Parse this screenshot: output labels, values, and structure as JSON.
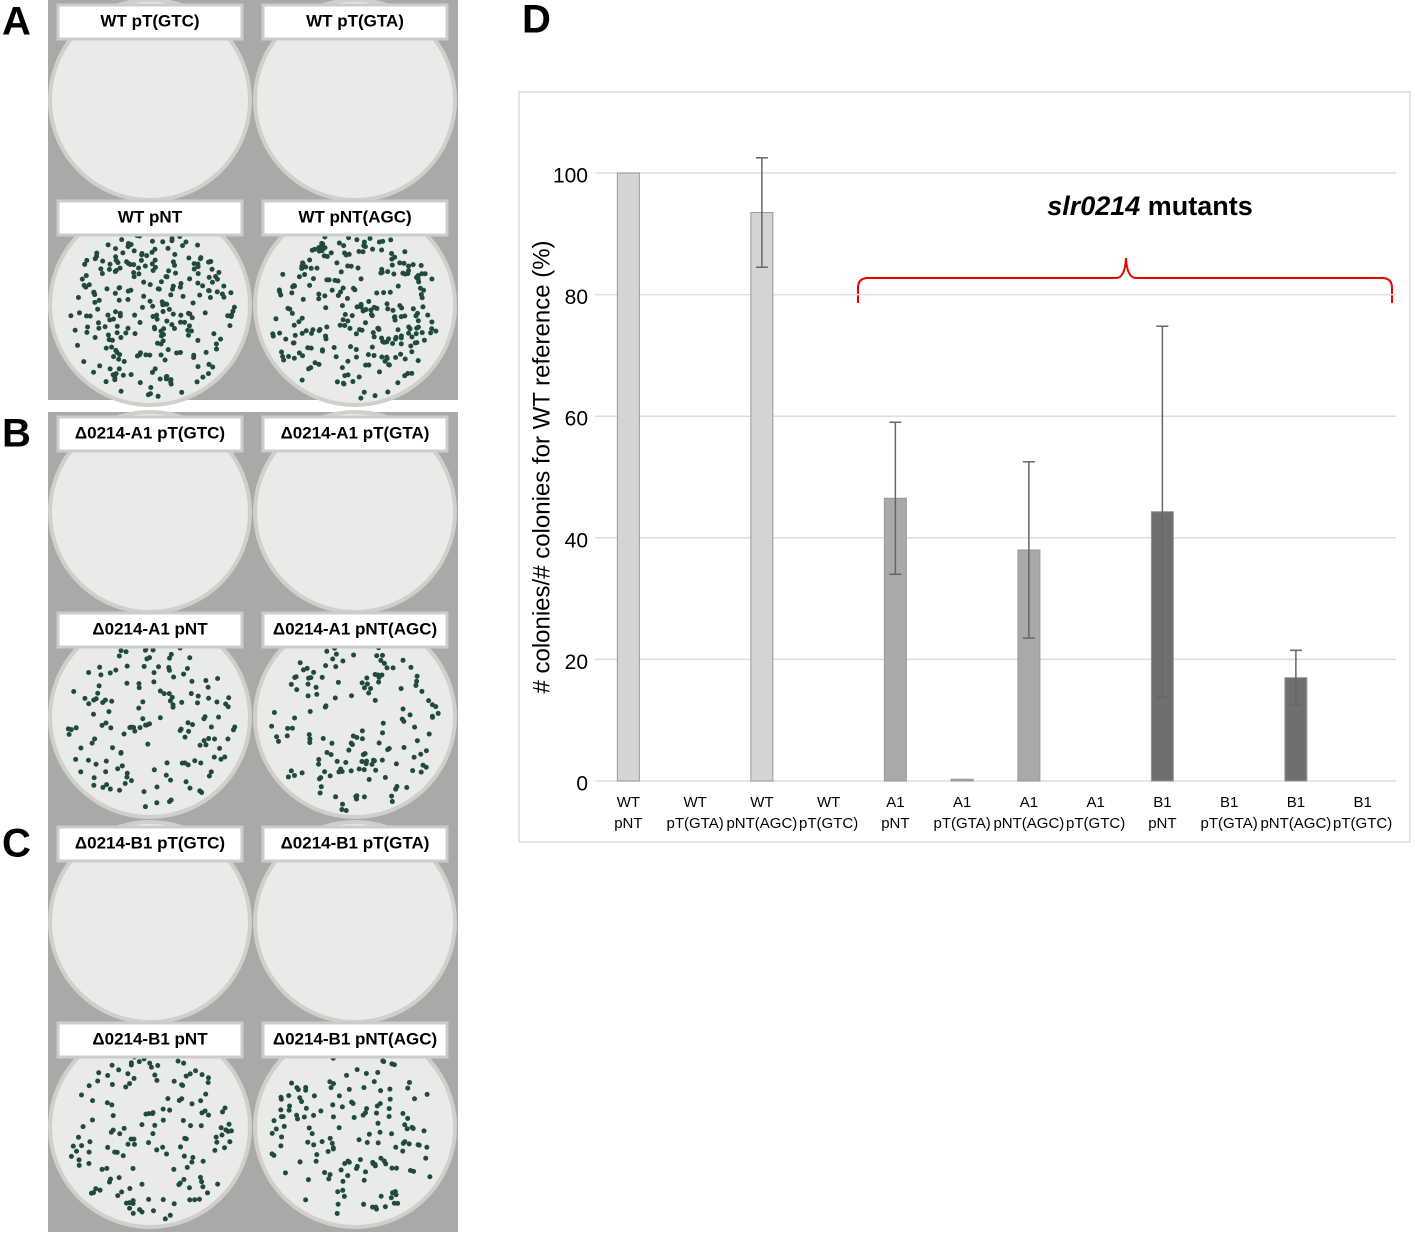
{
  "panels": [
    {
      "label": "A",
      "plates": [
        "WT pT(GTC)",
        "WT pT(GTA)",
        "WT pNT",
        "WT pNT(AGC)"
      ]
    },
    {
      "label": "B",
      "plates": [
        "Δ0214-A1 pT(GTC)",
        "Δ0214-A1 pT(GTA)",
        "Δ0214-A1 pNT",
        "Δ0214-A1 pNT(AGC)"
      ]
    },
    {
      "label": "C",
      "plates": [
        "Δ0214-B1 pT(GTC)",
        "Δ0214-B1 pT(GTA)",
        "Δ0214-B1 pNT",
        "Δ0214-B1 pNT(AGC)"
      ]
    }
  ],
  "chart_data": {
    "type": "bar",
    "panel_label": "D",
    "ylabel": "# colonies/# colonies for WT reference (%)",
    "annotation": {
      "italic": "slr0214",
      "text": "mutants"
    },
    "categories": [
      [
        "WT",
        "pNT"
      ],
      [
        "WT",
        "pT(GTA)"
      ],
      [
        "WT",
        "pNT(AGC)"
      ],
      [
        "WT",
        "pT(GTC)"
      ],
      [
        "A1",
        "pNT"
      ],
      [
        "A1",
        "pT(GTA)"
      ],
      [
        "A1",
        "pNT(AGC)"
      ],
      [
        "A1",
        "pT(GTC)"
      ],
      [
        "B1",
        "pNT"
      ],
      [
        "B1",
        "pT(GTA)"
      ],
      [
        "B1",
        "pNT(AGC)"
      ],
      [
        "B1",
        "pT(GTC)"
      ]
    ],
    "values": [
      100,
      0,
      93.5,
      0,
      46.5,
      0.3,
      38,
      0,
      44.3,
      0,
      17,
      0
    ],
    "errors": [
      null,
      null,
      9,
      null,
      12.5,
      null,
      14.5,
      null,
      30.5,
      null,
      4.5,
      null
    ],
    "colors": [
      "#d4d4d4",
      "#d4d4d4",
      "#d4d4d4",
      "#d4d4d4",
      "#a9a9a9",
      "#a9a9a9",
      "#a9a9a9",
      "#a9a9a9",
      "#6f6f6f",
      "#6f6f6f",
      "#6f6f6f",
      "#6f6f6f"
    ],
    "ylim": [
      0,
      100
    ],
    "yticks": [
      0,
      20,
      40,
      60,
      80,
      100
    ],
    "grid": true
  }
}
